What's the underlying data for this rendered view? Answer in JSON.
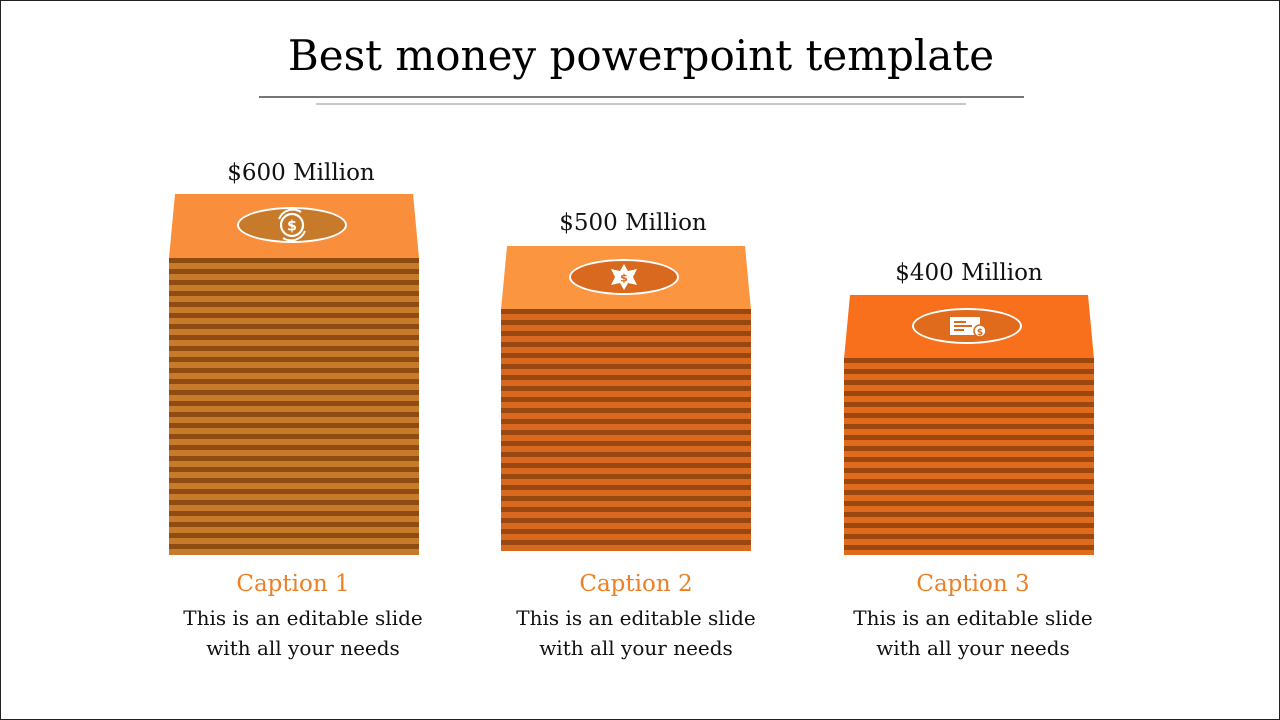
{
  "slide": {
    "title": "Best money powerpoint template"
  },
  "colors": {
    "accent": "#ed8024",
    "stack1_top": "#f98e3c",
    "stack1_light": "#c87a2b",
    "stack1_dark": "#8f4c12",
    "stack2_top": "#fc9540",
    "stack2_light": "#d9691f",
    "stack2_dark": "#9a4812",
    "stack3_top": "#f86f1c",
    "stack3_light": "#e16b1d",
    "stack3_dark": "#9b4710"
  },
  "stacks": [
    {
      "amount": "$600 Million",
      "icon": "dollar-exchange-icon",
      "caption_title": "Caption 1",
      "caption_text_1": "This is an editable slide",
      "caption_text_2": "with all your needs"
    },
    {
      "amount": "$500 Million",
      "icon": "dollar-badge-icon",
      "caption_title": "Caption 2",
      "caption_text_1": "This is an editable slide",
      "caption_text_2": "with all your needs"
    },
    {
      "amount": "$400 Million",
      "icon": "cheque-icon",
      "caption_title": "Caption 3",
      "caption_text_1": "This is an editable slide",
      "caption_text_2": "with all your needs"
    }
  ]
}
